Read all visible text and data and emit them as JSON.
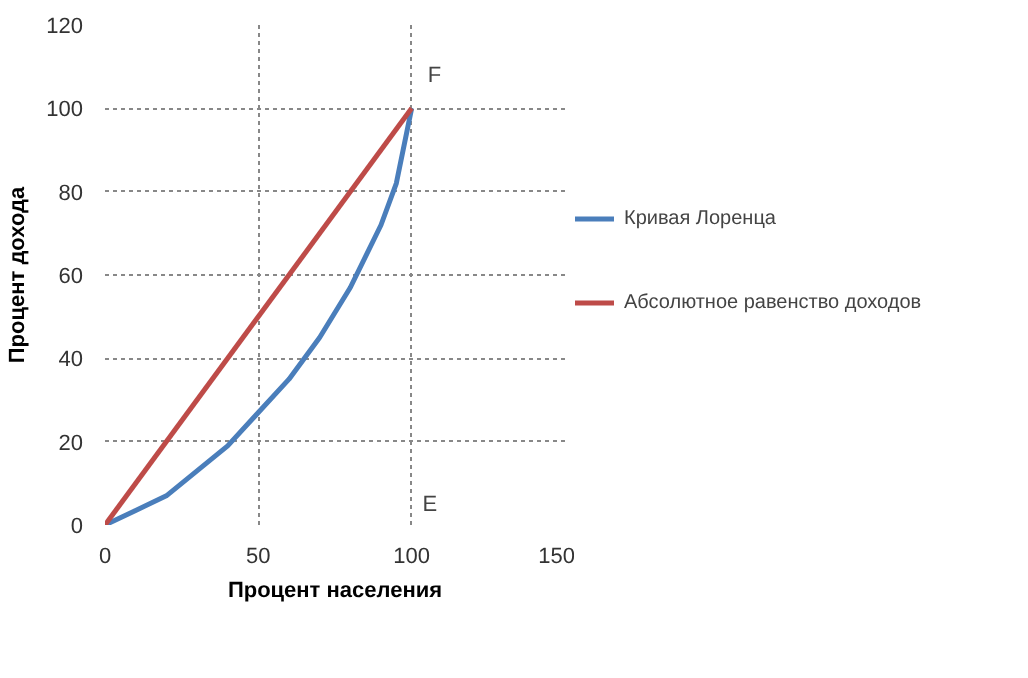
{
  "chart_data": {
    "type": "line",
    "xlabel": "Процент населения",
    "ylabel": "Процент дохода",
    "x": [
      0,
      10,
      20,
      30,
      40,
      50,
      60,
      70,
      80,
      90,
      95,
      100
    ],
    "series": [
      {
        "name": "Кривая Лоренца",
        "color": "#4a7ebb",
        "values": [
          0,
          3.5,
          7,
          13,
          19,
          27,
          35,
          45,
          57,
          72,
          82,
          100
        ]
      },
      {
        "name": "Абсолютное равенство доходов",
        "color": "#be4b48",
        "x": [
          0,
          100
        ],
        "values": [
          0,
          100
        ]
      }
    ],
    "annotations": [
      {
        "text": "F",
        "x": 100,
        "y": 100
      },
      "E"
    ],
    "xlim": [
      0,
      150
    ],
    "ylim": [
      0,
      120
    ],
    "xticks": [
      0,
      50,
      100,
      150
    ],
    "yticks": [
      0,
      20,
      40,
      60,
      80,
      100,
      120
    ],
    "grid": true,
    "legend": "right",
    "marker": "none",
    "line_style": "solid"
  }
}
